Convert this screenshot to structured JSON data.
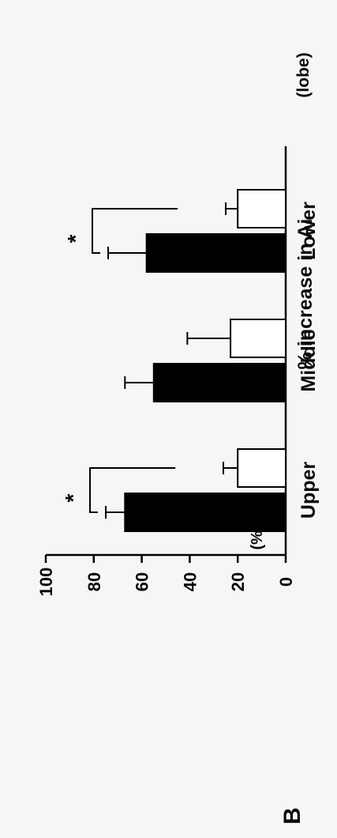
{
  "panel_label": "B",
  "chart_data": {
    "type": "bar",
    "orientation": "rotated-90-ccw",
    "categories": [
      "Upper",
      "Middle",
      "Lower"
    ],
    "category_axis_unit": "(lobe)",
    "ylabel": "% increase in Ai",
    "y_unit": "(%)",
    "ylim": [
      0,
      100
    ],
    "yticks": [
      0,
      20,
      40,
      60,
      80,
      100
    ],
    "series": [
      {
        "fill": "#000000",
        "values": [
          67,
          55,
          58
        ],
        "errors": [
          8,
          12,
          16
        ]
      },
      {
        "fill": "#ffffff",
        "values": [
          20,
          23,
          20
        ],
        "errors": [
          6,
          18,
          5
        ]
      }
    ],
    "significance": [
      {
        "category": "Upper",
        "label": "*"
      },
      {
        "category": "Lower",
        "label": "*"
      }
    ],
    "grid": false,
    "legend": "none"
  }
}
